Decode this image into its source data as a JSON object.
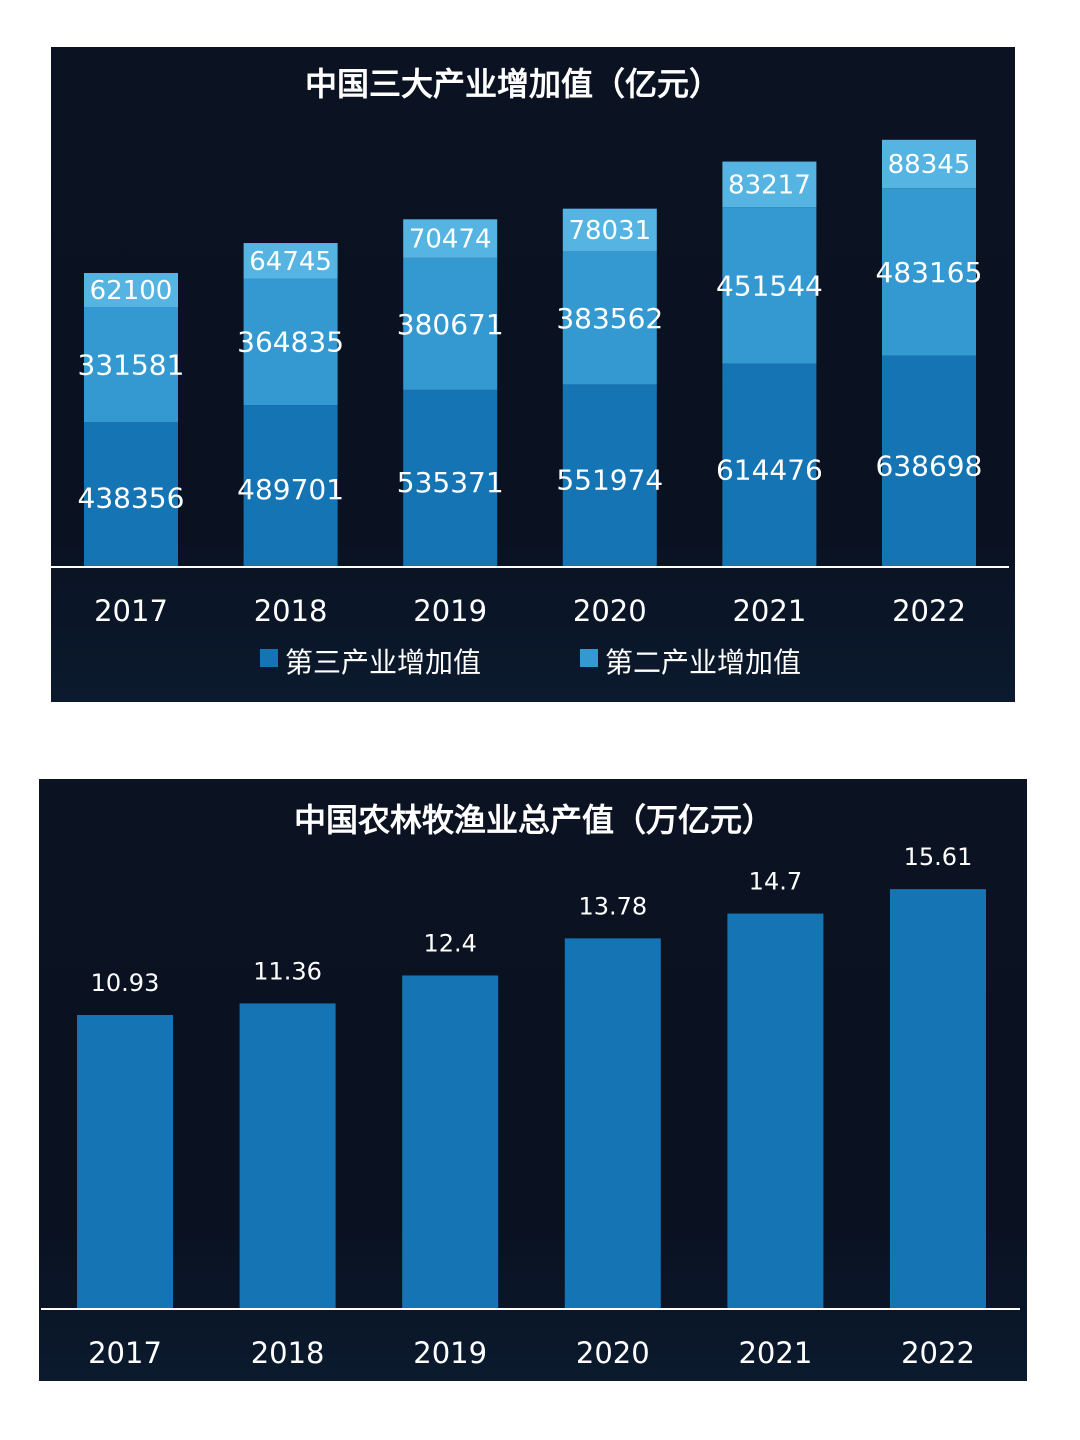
{
  "colors": {
    "tertiary": "#1474b4",
    "secondary": "#3399d0",
    "top_band": "#56b4e2",
    "bar": "#1474b4",
    "baseline": "#ffffff"
  },
  "chart_data": [
    {
      "type": "bar",
      "stacked": true,
      "title": "中国三大产业增加值（亿元）",
      "categories": [
        "2017",
        "2018",
        "2019",
        "2020",
        "2021",
        "2022"
      ],
      "series": [
        {
          "name": "第三产业增加值",
          "values": [
            438356,
            489701,
            535371,
            551974,
            614476,
            638698
          ]
        },
        {
          "name": "第二产业增加值",
          "values": [
            331581,
            364835,
            380671,
            383562,
            451544,
            483165
          ]
        },
        {
          "name": "",
          "values": [
            62100,
            64745,
            70474,
            78031,
            83217,
            88345
          ]
        }
      ],
      "legend": "bottom",
      "grid": false
    },
    {
      "type": "bar",
      "title": "中国农林牧渔业总产值（万亿元）",
      "categories": [
        "2017",
        "2018",
        "2019",
        "2020",
        "2021",
        "2022"
      ],
      "values": [
        10.93,
        11.36,
        12.4,
        13.78,
        14.7,
        15.61
      ],
      "legend": "none",
      "grid": false
    }
  ]
}
